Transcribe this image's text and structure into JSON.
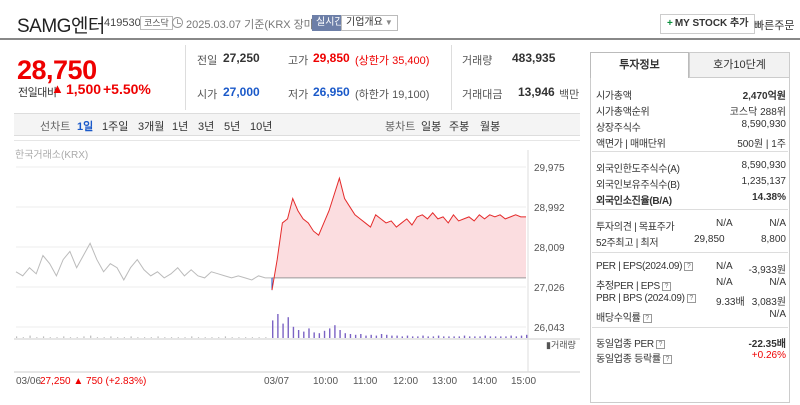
{
  "header": {
    "stock_name": "SAMG엔터",
    "stock_code": "419530",
    "market": "코스닥",
    "date_text": "2025.03.07  기준(KRX 장마감)",
    "realtime_label": "실시간",
    "company_label": "기업개요",
    "mystock_label": "MY STOCK 추가",
    "quick_order_label": "빠른주문"
  },
  "price": {
    "current": "28,750",
    "change_label": "전일대비",
    "change_arrow": "▲",
    "change_value": "1,500",
    "change_rate": "+5.50%"
  },
  "quote": {
    "prev_close_label": "전일",
    "prev_close": "27,250",
    "high_label": "고가",
    "high": "29,850",
    "upper_limit": "(상한가 35,400)",
    "volume_label": "거래량",
    "volume": "483,935",
    "open_label": "시가",
    "open": "27,000",
    "low_label": "저가",
    "low": "26,950",
    "lower_limit": "(하한가 19,100)",
    "amount_label": "거래대금",
    "amount": "13,946",
    "amount_unit": "백만"
  },
  "period_bar": {
    "line_label": "선차트",
    "line_periods": [
      "1일",
      "1주일",
      "3개월",
      "1년",
      "3년",
      "5년",
      "10년"
    ],
    "selected": "1일",
    "candle_label": "봉차트",
    "candle_periods": [
      "일봉",
      "주봉",
      "월봉"
    ]
  },
  "chart_data": {
    "type": "line",
    "source_label": "한국거래소(KRX)",
    "y_ticks": [
      "29,975",
      "28,992",
      "28,009",
      "27,026",
      "26,043"
    ],
    "ylim": [
      26043,
      29975
    ],
    "x_ticks": [
      "03/07",
      "10:00",
      "11:00",
      "12:00",
      "13:00",
      "14:00",
      "15:00"
    ],
    "prev_day_label": "03/06",
    "prev_day_close": "27,250",
    "prev_day_change_arrow": "▲",
    "prev_day_change": "750",
    "prev_day_rate": "(+2.83%)",
    "volume_label": "거래량",
    "base_price": 27250,
    "prev_series": [
      27400,
      27300,
      27500,
      27350,
      27800,
      27600,
      27300,
      27700,
      27900,
      27500,
      27800,
      28100,
      27700,
      27400,
      27600,
      27500,
      27200,
      27500,
      27700,
      27450,
      27300,
      27400,
      27250,
      27350,
      27500,
      27300,
      27450,
      27300,
      27250,
      27400,
      27350,
      27300,
      27250,
      27300,
      27250,
      27200,
      27300,
      27250,
      27250
    ],
    "today_series": [
      26950,
      27700,
      28600,
      28700,
      29200,
      28900,
      28700,
      28600,
      28400,
      28300,
      28600,
      28900,
      29300,
      29700,
      29200,
      29000,
      28800,
      28700,
      28600,
      28500,
      28800,
      28700,
      28600,
      28650,
      28500,
      28600,
      28700,
      28550,
      28750,
      28800,
      28700,
      28850,
      28700,
      28750,
      28600,
      28800,
      28650,
      28700,
      28750,
      28650,
      28800,
      28700,
      28800,
      28750,
      28800,
      28700,
      28750,
      28800,
      28750,
      28750
    ],
    "prev_volume": [
      2,
      1,
      3,
      1,
      2,
      1,
      1,
      2,
      1,
      1,
      2,
      3,
      1,
      1,
      2,
      1,
      1,
      2,
      1,
      1,
      1,
      2,
      1,
      1,
      1,
      1,
      2,
      1,
      1,
      1,
      1,
      2,
      1,
      1,
      1,
      1,
      1,
      1,
      1
    ],
    "today_volume": [
      22,
      30,
      18,
      26,
      14,
      10,
      8,
      12,
      7,
      6,
      9,
      12,
      16,
      10,
      6,
      5,
      4,
      5,
      3,
      4,
      3,
      5,
      4,
      3,
      3,
      2,
      3,
      2,
      2,
      3,
      2,
      2,
      3,
      2,
      2,
      2,
      2,
      3,
      2,
      2,
      2,
      3,
      2,
      2,
      2,
      2,
      3,
      2,
      3,
      4
    ]
  },
  "panel": {
    "tab_invest": "투자정보",
    "tab_hoga": "호가10단계",
    "market_cap_label": "시가총액",
    "market_cap": "2,470억원",
    "cap_rank_label": "시가총액순위",
    "cap_rank": "코스닥 288위",
    "shares_label": "상장주식수",
    "shares": "8,590,930",
    "par_label": "액면가 | 매매단위",
    "par": "500원 | 1주",
    "foreign_limit_label": "외국인한도주식수(A)",
    "foreign_limit": "8,590,930",
    "foreign_hold_label": "외국인보유주식수(B)",
    "foreign_hold": "1,235,137",
    "foreign_rate_label": "외국인소진율(B/A)",
    "foreign_rate": "14.38%",
    "opinion_label": "투자의견 | 목표주가",
    "opinion": "N/A",
    "target": "N/A",
    "week52_label": "52주최고 | 최저",
    "week52_high": "29,850",
    "week52_low": "8,800",
    "per_label": "PER | EPS(2024.09)",
    "per": "N/A",
    "eps": "-3,933원",
    "est_label": "추정PER | EPS",
    "est_per": "N/A",
    "est_eps": "N/A",
    "pbr_label": "PBR | BPS (2024.09)",
    "pbr": "9.33배",
    "bps": "3,083원",
    "div_label": "배당수익률",
    "div": "N/A",
    "sector_per_label": "동일업종 PER",
    "sector_per": "-22.35배",
    "sector_rate_label": "동일업종 등락률",
    "sector_rate": "+0.26%"
  }
}
